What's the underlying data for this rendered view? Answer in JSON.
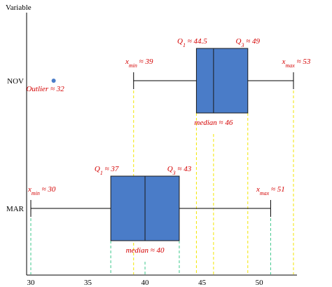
{
  "chart_data": {
    "type": "boxplot",
    "orientation": "horizontal",
    "ylabel": "Variable",
    "xlim": [
      30,
      53
    ],
    "x_ticks": [
      30,
      35,
      40,
      45,
      50
    ],
    "grid": false,
    "box_color": "#4a7cc8",
    "annotation_color": "#d40000",
    "series": [
      {
        "name": "NOV",
        "min": 39,
        "q1": 44.5,
        "median": 46,
        "q3": 49,
        "max": 53,
        "outliers": [
          32
        ],
        "guide_color": "#f2e600",
        "labels": {
          "min": "x_min ≈ 39",
          "q1": "Q_1 ≈ 44.5",
          "median": "median ≈ 46",
          "q3": "Q_3 ≈ 49",
          "max": "x_max ≈ 53",
          "outlier": "Outlier ≈ 32"
        }
      },
      {
        "name": "MAR",
        "min": 30,
        "q1": 37,
        "median": 40,
        "q3": 43,
        "max": 51,
        "outliers": [],
        "guide_color": "#3cc88c",
        "labels": {
          "min": "x_min ≈ 30",
          "q1": "Q_1 ≈ 37",
          "median": "median ≈ 40",
          "q3": "Q_3 ≈ 43",
          "max": "x_max ≈ 51"
        }
      }
    ]
  }
}
